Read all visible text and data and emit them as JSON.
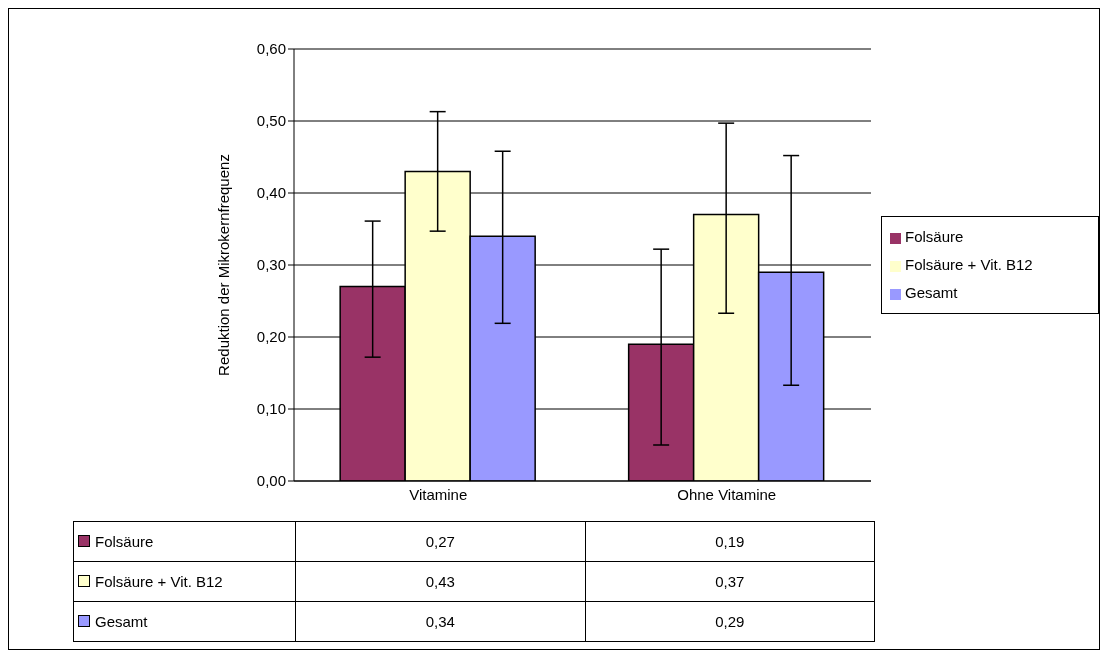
{
  "chart_data": {
    "type": "bar",
    "ylabel": "Reduktion der Mikrokernfrequenz",
    "categories": [
      "Vitamine",
      "Ohne Vitamine"
    ],
    "series": [
      {
        "name": "Folsäure",
        "color": "#993366",
        "values": [
          0.27,
          0.19
        ],
        "value_labels": [
          "0,27",
          "0,19"
        ],
        "errors": [
          [
            0.172,
            0.361
          ],
          [
            0.05,
            0.322
          ]
        ]
      },
      {
        "name": "Folsäure + Vit. B12",
        "color": "#ffffcc",
        "values": [
          0.43,
          0.37
        ],
        "value_labels": [
          "0,43",
          "0,37"
        ],
        "errors": [
          [
            0.347,
            0.513
          ],
          [
            0.233,
            0.497
          ]
        ]
      },
      {
        "name": "Gesamt",
        "color": "#9999ff",
        "values": [
          0.34,
          0.29
        ],
        "value_labels": [
          "0,34",
          "0,29"
        ],
        "errors": [
          [
            0.219,
            0.458
          ],
          [
            0.133,
            0.452
          ]
        ]
      }
    ],
    "ylim": [
      0,
      0.6
    ],
    "yticks": [
      {
        "value": 0,
        "label": "0,00"
      },
      {
        "value": 0.1,
        "label": "0,10"
      },
      {
        "value": 0.2,
        "label": "0,20"
      },
      {
        "value": 0.3,
        "label": "0,30"
      },
      {
        "value": 0.4,
        "label": "0,40"
      },
      {
        "value": 0.5,
        "label": "0,50"
      },
      {
        "value": 0.6,
        "label": "0,60"
      }
    ],
    "grid": "y",
    "legend": "right"
  }
}
